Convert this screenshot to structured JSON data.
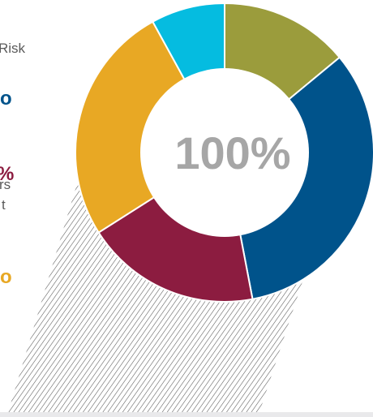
{
  "chart_data": {
    "type": "pie",
    "variant": "donut",
    "center_label": "100%",
    "values": [
      14,
      33,
      19,
      26,
      8
    ],
    "colors": [
      "#9b9c3c",
      "#00538b",
      "#8c1c40",
      "#e8a824",
      "#05bce0"
    ],
    "hatch_color": "#555555"
  },
  "text_fragments": {
    "line1": "Risk",
    "line2": "o",
    "line3": "%",
    "line4": "rs",
    "line5": "t",
    "line6": "o"
  },
  "colors": {
    "navy": "#00538b",
    "maroon": "#8c1c40",
    "gold": "#e8a824",
    "gray_text": "#5a5a5a",
    "center_text": "#a6a6a6"
  }
}
